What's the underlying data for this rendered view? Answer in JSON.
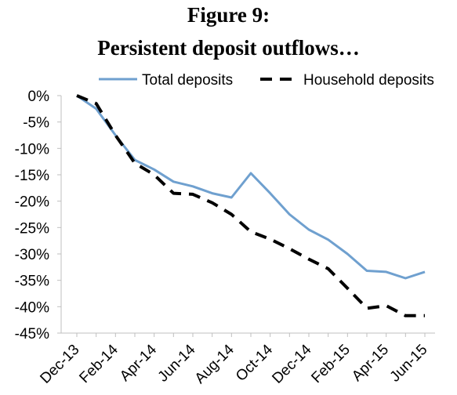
{
  "chart_data": {
    "type": "line",
    "title": "Figure 9:",
    "subtitle": "Persistent deposit outflows…",
    "xlabel": "",
    "ylabel": "",
    "ylim": [
      -45,
      0
    ],
    "y_ticks": [
      "0%",
      "-5%",
      "-10%",
      "-15%",
      "-20%",
      "-25%",
      "-30%",
      "-35%",
      "-40%",
      "-45%"
    ],
    "y_tick_values": [
      0,
      -5,
      -10,
      -15,
      -20,
      -25,
      -30,
      -35,
      -40,
      -45
    ],
    "x": [
      "Dec-13",
      "Jan-14",
      "Feb-14",
      "Mar-14",
      "Apr-14",
      "May-14",
      "Jun-14",
      "Jul-14",
      "Aug-14",
      "Sep-14",
      "Oct-14",
      "Nov-14",
      "Dec-14",
      "Jan-15",
      "Feb-15",
      "Mar-15",
      "Apr-15",
      "May-15",
      "Jun-15"
    ],
    "x_tick_labels": [
      "Dec-13",
      "Feb-14",
      "Apr-14",
      "Jun-14",
      "Aug-14",
      "Oct-14",
      "Dec-14",
      "Feb-15",
      "Apr-15",
      "Jun-15"
    ],
    "legend_position": "top-right",
    "grid": false,
    "series": [
      {
        "name": "Total deposits",
        "color": "#6fa0cf",
        "style": "solid",
        "values": [
          0,
          -2.5,
          -7.5,
          -12.2,
          -14.0,
          -16.3,
          -17.2,
          -18.5,
          -19.3,
          -14.7,
          -18.5,
          -22.5,
          -25.4,
          -27.3,
          -30.0,
          -33.2,
          -33.4,
          -34.6,
          -33.4
        ]
      },
      {
        "name": "Household deposits",
        "color": "#000000",
        "style": "dashed",
        "values": [
          0,
          -1.5,
          -7.5,
          -12.8,
          -15.0,
          -18.5,
          -18.7,
          -20.3,
          -22.5,
          -25.8,
          -27.2,
          -29.0,
          -31.0,
          -32.8,
          -36.5,
          -40.3,
          -39.8,
          -41.7,
          -41.7
        ]
      }
    ]
  }
}
